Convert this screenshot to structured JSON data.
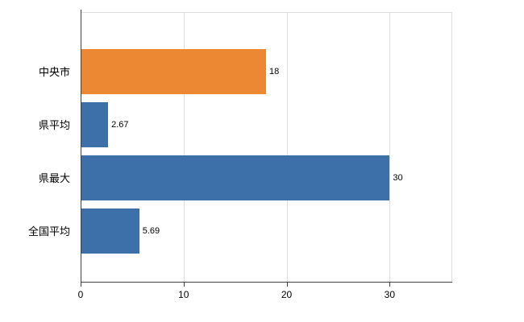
{
  "chart_data": {
    "type": "bar",
    "orientation": "horizontal",
    "title": "",
    "categories": [
      "中央市",
      "県平均",
      "県最大",
      "全国平均"
    ],
    "values": [
      18,
      2.67,
      30,
      5.69
    ],
    "value_labels": [
      "18",
      "2.67",
      "30",
      "5.69"
    ],
    "bar_colors": [
      "#ec8733",
      "#3d6fa8",
      "#3d6fa8",
      "#3d6fa8"
    ],
    "x_tick_values": [
      0,
      10,
      20,
      30
    ],
    "x_tick_labels": [
      "0",
      "10",
      "20",
      "30"
    ],
    "xlim": [
      0,
      36
    ],
    "grid": "vertical",
    "legend": "none"
  },
  "colors": {
    "background": "#ffffff",
    "axis": "#404040",
    "gridline": "#dcdcdc",
    "text": "#000000",
    "accent_orange": "#ec8733",
    "accent_blue": "#3d6fa8"
  }
}
